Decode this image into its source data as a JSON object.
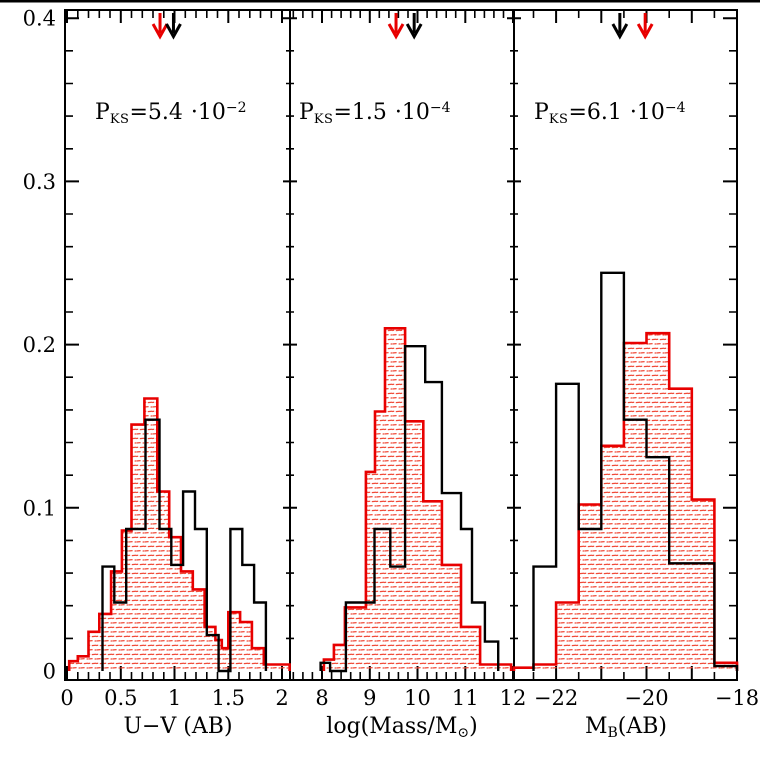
{
  "chart_data": {
    "type": "histogram",
    "description": "Three-panel normalized histogram comparison, black open histogram vs red hatched histogram, with KS probabilities and median arrows",
    "ylim": [
      0,
      0.403
    ],
    "y_ticks": {
      "values": [
        0,
        0.1,
        0.2,
        0.3,
        0.4
      ],
      "labels": [
        "0",
        "0.1",
        "0.2",
        "0.3",
        "0.4"
      ],
      "minor_step": 0.02
    },
    "colors": {
      "black": "#000000",
      "red": "#e80000",
      "hatch": "#f04a38",
      "background": "#ffffff"
    },
    "legend": "none",
    "grid": "off",
    "panels": [
      {
        "id": "uv-color",
        "xlim": [
          -0.019,
          2.074
        ],
        "x_major": {
          "values": [
            0,
            0.5,
            1,
            1.5,
            2
          ],
          "labels": [
            "0",
            "0.5",
            "1",
            "1.5",
            "2"
          ]
        },
        "x_minor_step": 0.1,
        "xtitle": {
          "pre": "U−V (AB)",
          "sub": "",
          "post": ""
        },
        "pks": {
          "base": "P",
          "sub": "KS",
          "value": "=5.4",
          "mant": "·10",
          "exp": "−2"
        },
        "arrow_red_x": 0.865,
        "arrow_black_x": 0.99,
        "red": {
          "edges": [
            0.02,
            0.1,
            0.2,
            0.3,
            0.41,
            0.51,
            0.6,
            0.72,
            0.84,
            0.95,
            1.06,
            1.17,
            1.28,
            1.38,
            1.44,
            1.5,
            1.61,
            1.72,
            1.83,
            2.07
          ],
          "heights": [
            0.006,
            0.009,
            0.024,
            0.035,
            0.061,
            0.086,
            0.151,
            0.167,
            0.11,
            0.082,
            0.061,
            0.05,
            0.027,
            0.019,
            0.014,
            0.036,
            0.03,
            0.014,
            0.004
          ]
        },
        "black": {
          "edges": [
            0.33,
            0.44,
            0.55,
            0.73,
            0.86,
            0.97,
            1.08,
            1.19,
            1.3,
            1.41,
            1.52,
            1.63,
            1.74,
            1.85
          ],
          "heights": [
            0.064,
            0.042,
            0.087,
            0.154,
            0.087,
            0.065,
            0.11,
            0.087,
            0.022,
            0,
            0.087,
            0.065,
            0.042
          ]
        }
      },
      {
        "id": "log-mass",
        "xlim": [
          7.33,
          12.02
        ],
        "x_major": {
          "values": [
            8,
            9,
            10,
            11,
            12
          ],
          "labels": [
            "8",
            "9",
            "10",
            "11",
            "12"
          ]
        },
        "x_minor_step": 0.2,
        "xtitle": {
          "pre": "log(Mass/M",
          "sub": "⊙",
          "post": ")"
        },
        "pks": {
          "base": "P",
          "sub": "KS",
          "value": "=1.5",
          "mant": "·10",
          "exp": "−4"
        },
        "arrow_red_x": 9.55,
        "arrow_black_x": 9.93,
        "red": {
          "edges": [
            8.04,
            8.25,
            8.48,
            8.92,
            9.11,
            9.32,
            9.74,
            10.12,
            10.51,
            10.91,
            11.31,
            11.96
          ],
          "heights": [
            0.007,
            0.016,
            0.039,
            0.122,
            0.159,
            0.21,
            0.153,
            0.104,
            0.065,
            0.027,
            0.004
          ]
        },
        "black": {
          "edges": [
            7.97,
            8.17,
            8.5,
            9.1,
            9.43,
            9.74,
            10.16,
            10.51,
            10.91,
            11.14,
            11.41,
            11.69
          ],
          "heights": [
            0.005,
            0,
            0.042,
            0.087,
            0.064,
            0.199,
            0.177,
            0.109,
            0.087,
            0.042,
            0.018
          ]
        }
      },
      {
        "id": "mb-magnitude",
        "xlim": [
          -22.93,
          -18.0
        ],
        "x_major": {
          "values": [
            -22,
            -21,
            -20,
            -19,
            -18
          ],
          "labels": [
            "−22",
            "",
            "−20",
            "",
            "−18"
          ]
        },
        "x_minor_step": 0.5,
        "xtitle": {
          "pre": "M",
          "sub": "B",
          "post": "(AB)"
        },
        "pks": {
          "base": "P",
          "sub": "KS",
          "value": "=6.1",
          "mant": "·10",
          "exp": "−4"
        },
        "arrow_red_x": -20.03,
        "arrow_black_x": -20.59,
        "red": {
          "edges": [
            -22.93,
            -22.5,
            -22.0,
            -21.5,
            -21.0,
            -20.5,
            -20.0,
            -19.5,
            -19.0,
            -18.5,
            -18.0
          ],
          "heights": [
            0.002,
            0.004,
            0.042,
            0.102,
            0.138,
            0.201,
            0.207,
            0.173,
            0.105,
            0.005
          ]
        },
        "black": {
          "edges": [
            -22.5,
            -22.0,
            -21.5,
            -21.0,
            -20.5,
            -20.0,
            -19.5,
            -18.5,
            -18.0
          ],
          "heights": [
            0.064,
            0.176,
            0.087,
            0.244,
            0.154,
            0.131,
            0.066,
            0.003
          ]
        }
      }
    ]
  }
}
